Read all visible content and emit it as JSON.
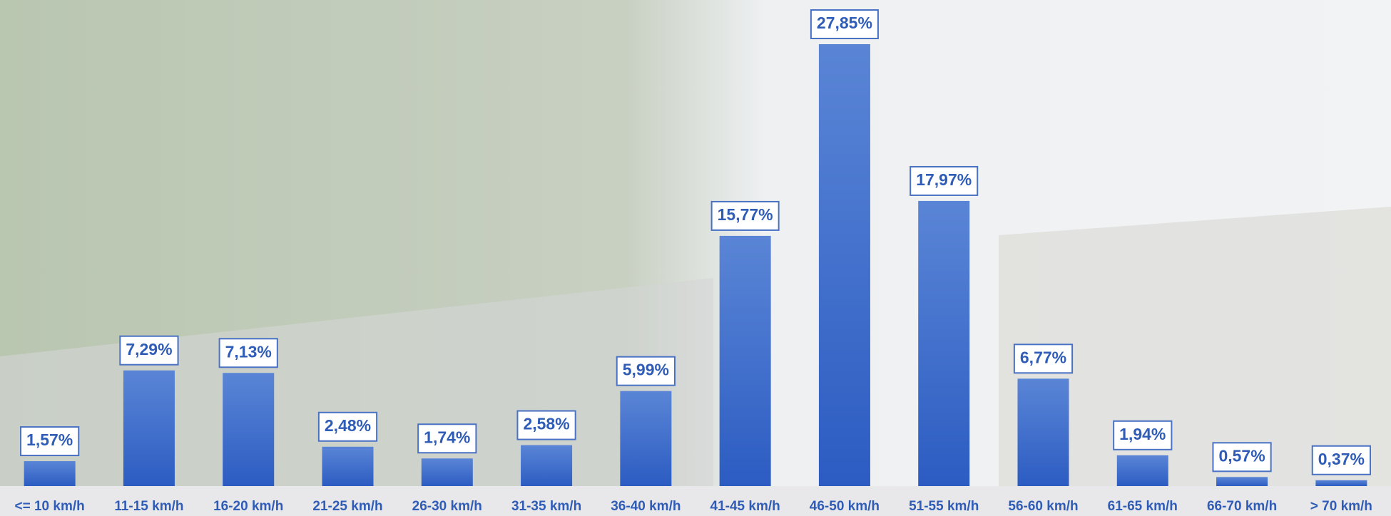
{
  "chart_data": {
    "type": "bar",
    "categories": [
      "<= 10 km/h",
      "11-15 km/h",
      "16-20 km/h",
      "21-25 km/h",
      "26-30 km/h",
      "31-35 km/h",
      "36-40 km/h",
      "41-45 km/h",
      "46-50 km/h",
      "51-55 km/h",
      "56-60 km/h",
      "61-65 km/h",
      "66-70 km/h",
      "> 70 km/h"
    ],
    "values": [
      1.57,
      7.29,
      7.13,
      2.48,
      1.74,
      2.58,
      5.99,
      15.77,
      27.85,
      17.97,
      6.77,
      1.94,
      0.57,
      0.37
    ],
    "value_labels": [
      "1,57%",
      "7,29%",
      "7,13%",
      "2,48%",
      "1,74%",
      "2,58%",
      "5,99%",
      "15,77%",
      "27,85%",
      "17,97%",
      "6,77%",
      "1,94%",
      "0,57%",
      "0,37%"
    ],
    "color": "#3a67c8"
  }
}
